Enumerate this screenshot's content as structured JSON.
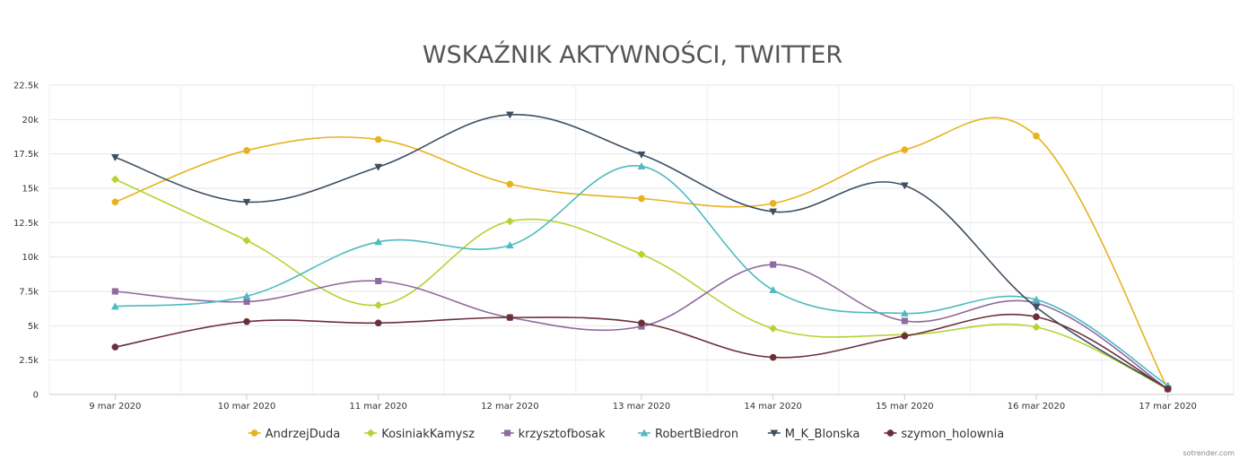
{
  "chart_data": {
    "type": "line",
    "title": "WSKAŹNIK AKTYWNOŚCI, TWITTER",
    "xlabel": "",
    "ylabel": "",
    "categories": [
      "9 mar 2020",
      "10 mar 2020",
      "11 mar 2020",
      "12 mar 2020",
      "13 mar 2020",
      "14 mar 2020",
      "15 mar 2020",
      "16 mar 2020",
      "17 mar 2020"
    ],
    "ylim": [
      0,
      22500
    ],
    "yticks": [
      0,
      2500,
      5000,
      7500,
      10000,
      12500,
      15000,
      17500,
      20000,
      22500
    ],
    "ytick_labels": [
      "0",
      "2.5k",
      "5k",
      "7.5k",
      "10k",
      "12.5k",
      "15k",
      "17.5k",
      "20k",
      "22.5k"
    ],
    "grid": true,
    "legend_position": "bottom",
    "series": [
      {
        "name": "AndrzejDuda",
        "color": "#e6b31e",
        "marker": "circle",
        "values": [
          14000,
          17750,
          18550,
          15300,
          14250,
          13900,
          17800,
          18800,
          400
        ]
      },
      {
        "name": "KosiniakKamysz",
        "color": "#b5d334",
        "marker": "diamond",
        "values": [
          15650,
          11200,
          6500,
          12600,
          10200,
          4800,
          4350,
          4900,
          400
        ]
      },
      {
        "name": "krzysztofbosak",
        "color": "#8f6a9e",
        "marker": "square",
        "values": [
          7500,
          6750,
          8250,
          5600,
          4950,
          9450,
          5350,
          6650,
          400
        ]
      },
      {
        "name": "RobertBiedron",
        "color": "#4ebac1",
        "marker": "triangle",
        "values": [
          6400,
          7150,
          11100,
          10850,
          16600,
          7600,
          5900,
          6900,
          650
        ]
      },
      {
        "name": "M_K_Blonska",
        "color": "#3d4f63",
        "marker": "triangle-down",
        "values": [
          17250,
          14000,
          16550,
          20350,
          17450,
          13300,
          15200,
          6350,
          400
        ]
      },
      {
        "name": "szymon_holownia",
        "color": "#6b2f3b",
        "marker": "circle",
        "values": [
          3450,
          5300,
          5200,
          5600,
          5200,
          2700,
          4250,
          5650,
          400
        ]
      }
    ]
  },
  "credit": "sotrender.com"
}
